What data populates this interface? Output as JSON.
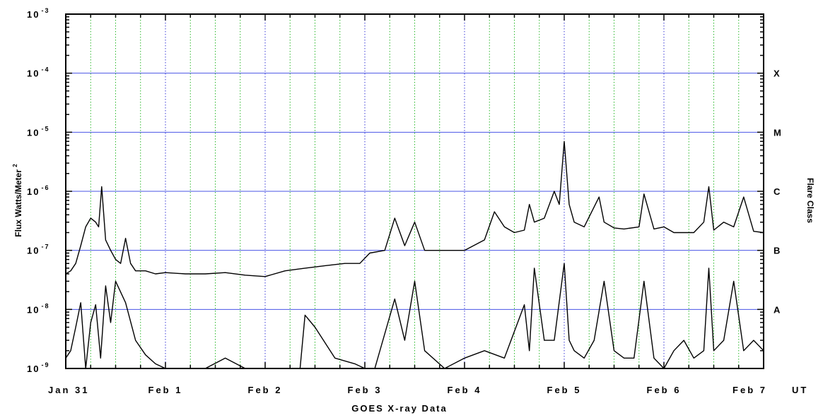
{
  "chart_data": {
    "type": "line",
    "title": "",
    "xlabel": "GOES X-ray Data",
    "ylabel": "Flux Watts/Meter",
    "ylabel_superscript": "2",
    "right_axis_label": "Flare Class",
    "x_unit_label": "UT",
    "y_scale": "log",
    "ylim": [
      1e-09,
      0.001
    ],
    "xlim": [
      "Jan 31",
      "Feb 7"
    ],
    "x_ticks": [
      "Jan 31",
      "Feb 1",
      "Feb 2",
      "Feb 3",
      "Feb 4",
      "Feb 5",
      "Feb 6",
      "Feb 7"
    ],
    "y_ticks": [
      {
        "base": "10",
        "exp": "-9",
        "value": 1e-09
      },
      {
        "base": "10",
        "exp": "-8",
        "value": 1e-08
      },
      {
        "base": "10",
        "exp": "-7",
        "value": 1e-07
      },
      {
        "base": "10",
        "exp": "-6",
        "value": 1e-06
      },
      {
        "base": "10",
        "exp": "-5",
        "value": 1e-05
      },
      {
        "base": "10",
        "exp": "-4",
        "value": 0.0001
      },
      {
        "base": "10",
        "exp": "-3",
        "value": 0.001
      }
    ],
    "flare_classes": [
      {
        "label": "A",
        "value": 1e-08
      },
      {
        "label": "B",
        "value": 1e-07
      },
      {
        "label": "C",
        "value": 1e-06
      },
      {
        "label": "M",
        "value": 1e-05
      },
      {
        "label": "X",
        "value": 0.0001
      }
    ],
    "grid": {
      "horizontal": "blue lines at each decade",
      "vertical": "green dotted 6-hourly, blue dotted daily"
    },
    "colors": {
      "series": "#000000",
      "decade_grid": "#4a55e6",
      "six_hour_grid": "#2cb82c",
      "day_grid": "#3a3ad6"
    },
    "series": [
      {
        "band": "long",
        "x_days": [
          0.0,
          0.05,
          0.1,
          0.15,
          0.2,
          0.25,
          0.3,
          0.33,
          0.36,
          0.4,
          0.45,
          0.5,
          0.55,
          0.6,
          0.65,
          0.7,
          0.8,
          0.9,
          1.0,
          1.2,
          1.4,
          1.6,
          1.8,
          2.0,
          2.2,
          2.4,
          2.6,
          2.8,
          2.95,
          3.05,
          3.2,
          3.3,
          3.4,
          3.5,
          3.6,
          3.8,
          4.0,
          4.2,
          4.3,
          4.4,
          4.5,
          4.6,
          4.65,
          4.7,
          4.8,
          4.9,
          4.95,
          5.0,
          5.05,
          5.1,
          5.2,
          5.35,
          5.4,
          5.5,
          5.6,
          5.75,
          5.8,
          5.9,
          6.0,
          6.1,
          6.2,
          6.3,
          6.4,
          6.45,
          6.5,
          6.6,
          6.7,
          6.8,
          6.9,
          7.0
        ],
        "flux": [
          4e-08,
          4.5e-08,
          6e-08,
          1.2e-07,
          2.5e-07,
          3.5e-07,
          3e-07,
          2.5e-07,
          1.2e-06,
          1.5e-07,
          1e-07,
          7e-08,
          6e-08,
          1.6e-07,
          6e-08,
          4.5e-08,
          4.5e-08,
          4e-08,
          4.2e-08,
          4e-08,
          4e-08,
          4.2e-08,
          3.8e-08,
          3.6e-08,
          4.5e-08,
          5e-08,
          5.5e-08,
          6e-08,
          6e-08,
          9e-08,
          1e-07,
          3.5e-07,
          1.2e-07,
          3e-07,
          1e-07,
          1e-07,
          1e-07,
          1.5e-07,
          4.5e-07,
          2.5e-07,
          2e-07,
          2.2e-07,
          6e-07,
          3e-07,
          3.5e-07,
          1e-06,
          6e-07,
          7e-06,
          6e-07,
          3e-07,
          2.5e-07,
          8e-07,
          3e-07,
          2.4e-07,
          2.3e-07,
          2.5e-07,
          9e-07,
          2.3e-07,
          2.5e-07,
          2e-07,
          2e-07,
          2e-07,
          3e-07,
          1.2e-06,
          2.2e-07,
          3e-07,
          2.5e-07,
          8e-07,
          2.1e-07,
          2e-07
        ]
      },
      {
        "band": "short",
        "x_days": [
          0.0,
          0.05,
          0.1,
          0.15,
          0.2,
          0.25,
          0.3,
          0.35,
          0.4,
          0.45,
          0.5,
          0.6,
          0.7,
          0.8,
          0.9,
          1.0,
          1.2,
          1.4,
          1.6,
          1.8,
          2.0,
          2.2,
          2.35,
          2.4,
          2.5,
          2.7,
          2.9,
          3.0,
          3.1,
          3.3,
          3.4,
          3.5,
          3.6,
          3.8,
          4.0,
          4.2,
          4.4,
          4.6,
          4.65,
          4.7,
          4.8,
          4.9,
          5.0,
          5.05,
          5.1,
          5.2,
          5.3,
          5.4,
          5.5,
          5.6,
          5.7,
          5.8,
          5.9,
          6.0,
          6.1,
          6.2,
          6.3,
          6.4,
          6.45,
          6.5,
          6.6,
          6.7,
          6.8,
          6.9,
          7.0
        ],
        "flux": [
          1.5e-09,
          2e-09,
          5e-09,
          1.3e-08,
          1e-09,
          6e-09,
          1.2e-08,
          1.5e-09,
          2.5e-08,
          6e-09,
          3e-08,
          1.3e-08,
          3e-09,
          1.7e-09,
          1.2e-09,
          1e-09,
          1e-09,
          1e-09,
          1.5e-09,
          1e-09,
          1e-09,
          1e-09,
          1e-09,
          8e-09,
          5e-09,
          1.5e-09,
          1.2e-09,
          1e-09,
          1e-09,
          1.5e-08,
          3e-09,
          3e-08,
          2e-09,
          1e-09,
          1.5e-09,
          2e-09,
          1.5e-09,
          1.2e-08,
          2e-09,
          5e-08,
          3e-09,
          3e-09,
          6e-08,
          3e-09,
          2e-09,
          1.5e-09,
          3e-09,
          3e-08,
          2e-09,
          1.5e-09,
          1.5e-09,
          3e-08,
          1.5e-09,
          1e-09,
          2e-09,
          3e-09,
          1.5e-09,
          2e-09,
          5e-08,
          2e-09,
          3e-09,
          3e-08,
          2e-09,
          3e-09,
          2e-09
        ]
      }
    ]
  }
}
